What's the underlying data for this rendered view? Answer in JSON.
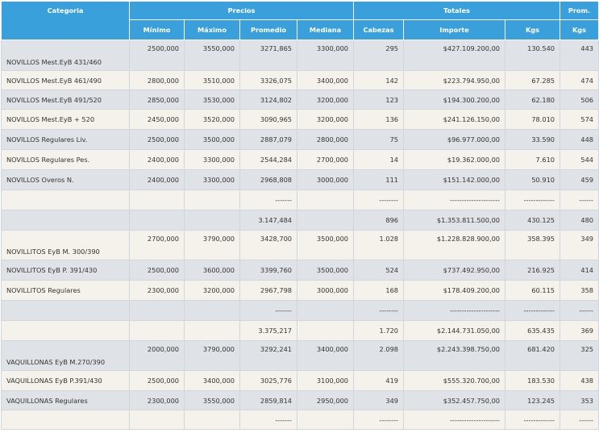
{
  "header": {
    "groups": [
      "Categoria",
      "Precios",
      "Totales",
      "Prom."
    ],
    "columns": [
      "Mínimo",
      "Máximo",
      "Promedio",
      "Mediana",
      "Cabezas",
      "Importe",
      "Kgs",
      "Kgs"
    ]
  },
  "rows": [
    {
      "style": "gray",
      "h": 38,
      "layout": "split",
      "cells": [
        "NOVILLOS Mest.EyB 431/460",
        "2500,000",
        "3550,000",
        "3271,865",
        "3300,000",
        "295",
        "$427.109.200,00",
        "130.540",
        "443"
      ]
    },
    {
      "style": "cream",
      "h": 24,
      "layout": "mid",
      "cells": [
        "NOVILLOS Mest.EyB 461/490",
        "2800,000",
        "3510,000",
        "3326,075",
        "3400,000",
        "142",
        "$223.794.950,00",
        "67.285",
        "474"
      ]
    },
    {
      "style": "gray",
      "h": 24,
      "layout": "mid",
      "cells": [
        "NOVILLOS Mest.EyB 491/520",
        "2850,000",
        "3530,000",
        "3124,802",
        "3200,000",
        "123",
        "$194.300.200,00",
        "62.180",
        "506"
      ]
    },
    {
      "style": "cream",
      "h": 25,
      "layout": "mid",
      "cells": [
        "NOVILLOS Mest.EyB + 520",
        "2450,000",
        "3520,000",
        "3090,965",
        "3200,000",
        "136",
        "$241.126.150,00",
        "78.010",
        "574"
      ]
    },
    {
      "style": "gray",
      "h": 25,
      "layout": "mid",
      "cells": [
        "NOVILLOS Regulares Liv.",
        "2500,000",
        "3500,000",
        "2887,079",
        "2800,000",
        "75",
        "$96.977.000,00",
        "33.590",
        "448"
      ]
    },
    {
      "style": "cream",
      "h": 25,
      "layout": "mid",
      "cells": [
        "NOVILLOS Regulares Pes.",
        "2400,000",
        "3300,000",
        "2544,284",
        "2700,000",
        "14",
        "$19.362.000,00",
        "7.610",
        "544"
      ]
    },
    {
      "style": "gray",
      "h": 25,
      "layout": "mid",
      "cells": [
        "NOVILLOS Overos N.",
        "2400,000",
        "3300,000",
        "2968,808",
        "3000,000",
        "111",
        "$151.142.000,00",
        "50.910",
        "459"
      ]
    },
    {
      "style": "cream",
      "h": 25,
      "layout": "mid",
      "cells": [
        "",
        "",
        "",
        "-------",
        "",
        "--------",
        "---------------------",
        "-------------",
        "------"
      ]
    },
    {
      "style": "gray",
      "h": 25,
      "layout": "mid",
      "cells": [
        "",
        "",
        "",
        "3.147,484",
        "",
        "896",
        "$1.353.811.500,00",
        "430.125",
        "480"
      ]
    },
    {
      "style": "cream",
      "h": 37,
      "layout": "split",
      "cells": [
        "NOVILLITOS EyB M. 300/390",
        "2700,000",
        "3790,000",
        "3428,700",
        "3500,000",
        "1.028",
        "$1.228.828.900,00",
        "358.395",
        "349"
      ]
    },
    {
      "style": "gray",
      "h": 25,
      "layout": "mid",
      "cells": [
        "NOVILLITOS EyB P. 391/430",
        "2500,000",
        "3600,000",
        "3399,760",
        "3500,000",
        "524",
        "$737.492.950,00",
        "216.925",
        "414"
      ]
    },
    {
      "style": "cream",
      "h": 25,
      "layout": "mid",
      "cells": [
        "NOVILLITOS Regulares",
        "2300,000",
        "3200,000",
        "2967,798",
        "3000,000",
        "168",
        "$178.409.200,00",
        "60.115",
        "358"
      ]
    },
    {
      "style": "gray",
      "h": 25,
      "layout": "mid",
      "cells": [
        "",
        "",
        "",
        "-------",
        "",
        "--------",
        "---------------------",
        "-------------",
        "------"
      ]
    },
    {
      "style": "cream",
      "h": 25,
      "layout": "mid",
      "cells": [
        "",
        "",
        "",
        "3.375,217",
        "",
        "1.720",
        "$2.144.731.050,00",
        "635.435",
        "369"
      ]
    },
    {
      "style": "gray",
      "h": 37,
      "layout": "split",
      "cells": [
        "VAQUILLONAS EyB M.270/390",
        "2000,000",
        "3790,000",
        "3292,241",
        "3400,000",
        "2.098",
        "$2.243.398.750,00",
        "681.420",
        "325"
      ]
    },
    {
      "style": "cream",
      "h": 25,
      "layout": "mid",
      "cells": [
        "VAQUILLONAS EyB P.391/430",
        "2500,000",
        "3400,000",
        "3025,776",
        "3100,000",
        "419",
        "$555.320.700,00",
        "183.530",
        "438"
      ]
    },
    {
      "style": "gray",
      "h": 24,
      "layout": "mid",
      "cells": [
        "VAQUILLONAS Regulares",
        "2300,000",
        "3550,000",
        "2859,814",
        "2950,000",
        "349",
        "$352.457.750,00",
        "123.245",
        "353"
      ]
    },
    {
      "style": "cream",
      "h": 24,
      "layout": "mid",
      "cells": [
        "",
        "",
        "",
        "-------",
        "",
        "--------",
        "---------------------",
        "-------------",
        "------"
      ]
    }
  ]
}
